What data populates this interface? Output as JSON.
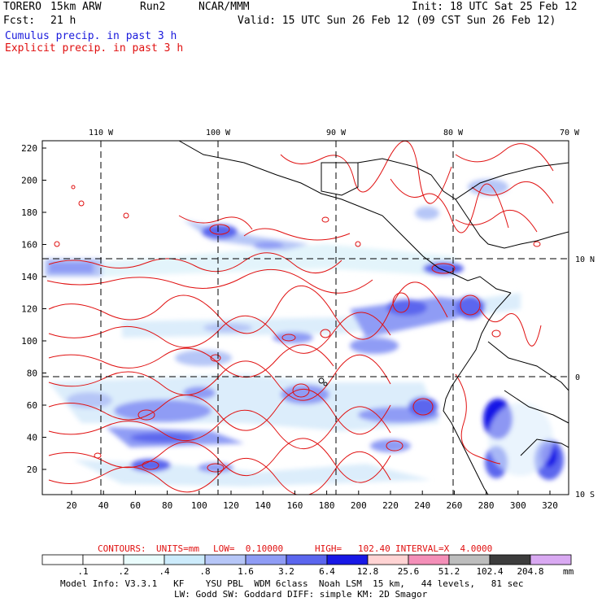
{
  "header": {
    "model": "TORERO",
    "resolution": "15km ARW",
    "run": "Run2",
    "org": "NCAR/MMM",
    "init": "Init: 18 UTC Sat 25 Feb 12",
    "fcst_label": "Fcst:",
    "fcst_value": "21 h",
    "valid": "Valid: 15 UTC Sun 26 Feb 12 (09 CST Sun 26 Feb 12)",
    "cumulus": "Cumulus precip. in past 3 h",
    "explicit": "Explicit precip. in past 3 h"
  },
  "colors": {
    "blue_text": "#1a1adc",
    "red_text": "#e01010",
    "contour": "#e01010",
    "coast": "#000000"
  },
  "map": {
    "lon_labels": [
      "110 W",
      "100 W",
      "90 W",
      "80 W",
      "70 W"
    ],
    "lat_labels": [
      "10 N",
      "0",
      "10 S"
    ],
    "y_ticks": [
      "220",
      "200",
      "180",
      "160",
      "140",
      "120",
      "100",
      "80",
      "60",
      "40",
      "20"
    ],
    "x_ticks": [
      "20",
      "40",
      "60",
      "80",
      "100",
      "120",
      "140",
      "160",
      "180",
      "200",
      "220",
      "240",
      "260",
      "280",
      "300",
      "320"
    ]
  },
  "contour_info": {
    "contours": "CONTOURS:",
    "units": "UNITS=mm",
    "low": "LOW=  0.10000",
    "high": "HIGH=   102.40",
    "interval": "INTERVAL=X  4.0000"
  },
  "colorbar": {
    "colors": [
      "#ffffff",
      "#ffffff",
      "#ffffff",
      "#eafcfc",
      "#ccebfb",
      "#b6c6f7",
      "#8f9cf5",
      "#5b66ee",
      "#1818e6",
      "#ffd3d3",
      "#f48fb8",
      "#bdbdbd",
      "#3c3c3c",
      "#d9a9f2"
    ],
    "labels": [
      ".1",
      ".2",
      ".4",
      ".8",
      "1.6",
      "3.2",
      "6.4",
      "12.8",
      "25.6",
      "51.2",
      "102.4",
      "204.8"
    ],
    "unit": "mm"
  },
  "footer": {
    "line1": "Model Info: V3.3.1   KF    YSU PBL  WDM 6class  Noah LSM  15 km,   44 levels,   81 sec",
    "line2": "LW: Godd SW: Goddard DIFF: simple KM: 2D Smagor"
  }
}
